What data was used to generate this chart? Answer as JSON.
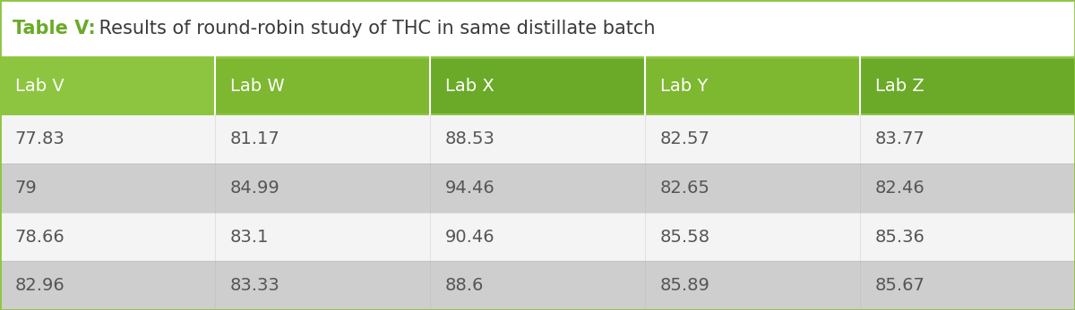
{
  "title_bold": "Table V:",
  "title_regular": " Results of round-robin study of THC in same distillate batch",
  "columns": [
    "Lab V",
    "Lab W",
    "Lab X",
    "Lab Y",
    "Lab Z"
  ],
  "rows": [
    [
      "77.83",
      "81.17",
      "88.53",
      "82.57",
      "83.77"
    ],
    [
      "79",
      "84.99",
      "94.46",
      "82.65",
      "82.46"
    ],
    [
      "78.66",
      "83.1",
      "90.46",
      "85.58",
      "85.36"
    ],
    [
      "82.96",
      "83.33",
      "88.6",
      "85.89",
      "85.67"
    ]
  ],
  "header_bg_colors": [
    "#8dc540",
    "#7db830",
    "#6aaa28",
    "#7db830",
    "#6aaa28"
  ],
  "row_bg_colors": [
    "#f4f4f4",
    "#cecece",
    "#f4f4f4",
    "#cecece"
  ],
  "title_bold_color": "#6aaa28",
  "title_regular_color": "#3a3a3a",
  "header_text_color": "#ffffff",
  "data_text_color": "#555555",
  "background_color": "#ffffff",
  "border_color": "#8dc540",
  "divider_color": "#8dc540",
  "title_font_size": 15,
  "header_font_size": 14,
  "data_font_size": 14,
  "col_divider_color": "#b0b0b0",
  "figwidth": 12.0,
  "figheight": 3.47
}
